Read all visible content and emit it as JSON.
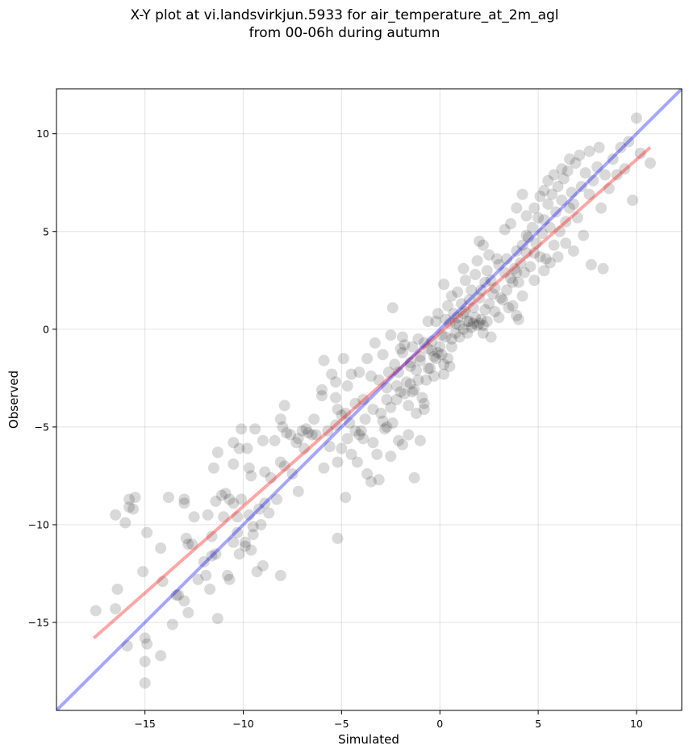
{
  "title_lines": [
    "X-Y plot at vi.landsvirkjun.5933 for air_temperature_at_2m_agl",
    "from 00-06h during autumn"
  ],
  "chart_data": {
    "type": "scatter",
    "title": "X-Y plot at vi.landsvirkjun.5933 for air_temperature_at_2m_agl\nfrom 00-06h during autumn",
    "xlabel": "Simulated",
    "ylabel": "Observed",
    "xlim": [
      -19.5,
      12.3
    ],
    "ylim": [
      -19.5,
      12.3
    ],
    "xticks": [
      -15,
      -10,
      -5,
      0,
      5,
      10
    ],
    "xtick_labels": [
      "−15",
      "−10",
      "−5",
      "0",
      "5",
      "10"
    ],
    "yticks": [
      -15,
      -10,
      -5,
      0,
      5,
      10
    ],
    "ytick_labels": [
      "−15",
      "−10",
      "−5",
      "0",
      "5",
      "10"
    ],
    "grid": true,
    "point_color": "#000000",
    "point_alpha": 0.15,
    "points": [
      [
        -17.5,
        -14.4
      ],
      [
        -16.5,
        -14.3
      ],
      [
        -16.4,
        -13.3
      ],
      [
        -15.9,
        -16.2
      ],
      [
        -15.0,
        -18.1
      ],
      [
        -15.0,
        -15.8
      ],
      [
        -15.0,
        -17.0
      ],
      [
        -14.9,
        -16.1
      ],
      [
        -14.2,
        -16.7
      ],
      [
        -14.1,
        -12.9
      ],
      [
        -13.6,
        -15.1
      ],
      [
        -13.3,
        -13.6
      ],
      [
        -13.0,
        -13.9
      ],
      [
        -12.8,
        -14.5
      ],
      [
        -12.6,
        -11.0
      ],
      [
        -11.9,
        -12.6
      ],
      [
        -11.6,
        -11.6
      ],
      [
        -11.3,
        -14.8
      ],
      [
        -11.4,
        -11.5
      ],
      [
        -10.7,
        -12.8
      ],
      [
        -10.2,
        -11.5
      ],
      [
        -10.3,
        -10.4
      ],
      [
        -9.9,
        -10.9
      ],
      [
        -9.6,
        -11.3
      ],
      [
        -9.3,
        -12.4
      ],
      [
        -9.5,
        -10.5
      ],
      [
        -9.0,
        -12.1
      ],
      [
        -8.1,
        -12.6
      ],
      [
        -16.5,
        -9.5
      ],
      [
        -16.0,
        -9.9
      ],
      [
        -15.8,
        -8.7
      ],
      [
        -15.8,
        -9.1
      ],
      [
        -15.6,
        -9.2
      ],
      [
        -15.5,
        -8.6
      ],
      [
        -15.1,
        -12.4
      ],
      [
        -14.9,
        -10.4
      ],
      [
        -14.2,
        -11.2
      ],
      [
        -13.8,
        -8.6
      ],
      [
        -13.4,
        -13.6
      ],
      [
        -13.0,
        -8.7
      ],
      [
        -13.0,
        -8.9
      ],
      [
        -12.9,
        -10.7
      ],
      [
        -12.8,
        -11.0
      ],
      [
        -12.5,
        -9.6
      ],
      [
        -11.8,
        -9.5
      ],
      [
        -11.6,
        -10.6
      ],
      [
        -11.4,
        -8.8
      ],
      [
        -11.1,
        -8.5
      ],
      [
        -11.0,
        -9.6
      ],
      [
        -10.9,
        -8.4
      ],
      [
        -10.7,
        -8.7
      ],
      [
        -10.5,
        -8.9
      ],
      [
        -10.5,
        -10.9
      ],
      [
        -10.3,
        -9.6
      ],
      [
        -10.1,
        -8.7
      ],
      [
        -9.7,
        -9.5
      ],
      [
        -9.5,
        -10.1
      ],
      [
        -9.2,
        -9.2
      ],
      [
        -8.9,
        -8.9
      ],
      [
        -8.6,
        -7.6
      ],
      [
        -11.5,
        -7.1
      ],
      [
        -11.3,
        -6.3
      ],
      [
        -10.5,
        -6.9
      ],
      [
        -10.5,
        -5.8
      ],
      [
        -10.2,
        -6.1
      ],
      [
        -10.1,
        -5.1
      ],
      [
        -9.8,
        -6.1
      ],
      [
        -9.7,
        -7.1
      ],
      [
        -9.6,
        -7.5
      ],
      [
        -9.4,
        -5.1
      ],
      [
        -9.0,
        -5.7
      ],
      [
        -8.9,
        -7.3
      ],
      [
        -8.4,
        -5.7
      ],
      [
        -8.1,
        -4.6
      ],
      [
        -8.0,
        -5.0
      ],
      [
        -7.9,
        -3.9
      ],
      [
        -8.1,
        -6.8
      ],
      [
        -7.6,
        -5.4
      ],
      [
        -7.2,
        -5.6
      ],
      [
        -7.0,
        -5.2
      ],
      [
        -6.8,
        -5.1
      ],
      [
        -6.5,
        -5.4
      ],
      [
        -6.3,
        -5.4
      ],
      [
        -5.9,
        -7.1
      ],
      [
        -5.7,
        -5.2
      ],
      [
        -5.3,
        -4.9
      ],
      [
        -5.2,
        -4.1
      ],
      [
        -5.0,
        -4.4
      ],
      [
        -4.8,
        -4.3
      ],
      [
        -4.6,
        -4.8
      ],
      [
        -4.2,
        -6.8
      ],
      [
        -4.1,
        -5.4
      ],
      [
        -4.0,
        -5.2
      ],
      [
        -3.7,
        -7.4
      ],
      [
        -3.5,
        -7.8
      ],
      [
        -3.2,
        -6.4
      ],
      [
        -3.1,
        -7.7
      ],
      [
        -2.7,
        -5.0
      ],
      [
        -2.5,
        -6.5
      ],
      [
        -2.4,
        -4.8
      ],
      [
        -2.1,
        -5.7
      ],
      [
        -1.9,
        -5.9
      ],
      [
        -1.6,
        -5.4
      ],
      [
        -1.3,
        -7.6
      ],
      [
        -1.0,
        -5.7
      ],
      [
        -7.2,
        -8.3
      ],
      [
        -5.2,
        -10.7
      ],
      [
        -4.8,
        -8.6
      ],
      [
        -5.2,
        -6.8
      ],
      [
        -6.4,
        -4.6
      ],
      [
        -6.0,
        -3.1
      ],
      [
        -6.0,
        -3.4
      ],
      [
        -5.9,
        -1.6
      ],
      [
        -5.5,
        -2.3
      ],
      [
        -5.3,
        -2.7
      ],
      [
        -5.3,
        -3.5
      ],
      [
        -4.9,
        -1.5
      ],
      [
        -4.7,
        -2.9
      ],
      [
        -4.5,
        -2.3
      ],
      [
        -4.3,
        -3.8
      ],
      [
        -4.1,
        -2.2
      ],
      [
        -3.9,
        -3.6
      ],
      [
        -3.7,
        -1.5
      ],
      [
        -3.5,
        -2.4
      ],
      [
        -3.3,
        -0.7
      ],
      [
        -3.1,
        -2.6
      ],
      [
        -2.9,
        -1.3
      ],
      [
        -2.7,
        -3.0
      ],
      [
        -2.6,
        -2.2
      ],
      [
        -2.5,
        -0.3
      ],
      [
        -2.4,
        1.1
      ],
      [
        -2.3,
        -1.8
      ],
      [
        -2.2,
        -3.6
      ],
      [
        -2.1,
        -2.2
      ],
      [
        -2.0,
        -1.0
      ],
      [
        -1.9,
        -0.4
      ],
      [
        -1.8,
        -0.8
      ],
      [
        -1.7,
        -2.7
      ],
      [
        -1.6,
        -3.9
      ],
      [
        -1.5,
        -1.7
      ],
      [
        -1.4,
        -0.9
      ],
      [
        -1.3,
        -3.1
      ],
      [
        -1.2,
        -2.1
      ],
      [
        -1.1,
        -0.5
      ],
      [
        -1.0,
        -1.4
      ],
      [
        -0.9,
        -3.5
      ],
      [
        -0.8,
        -3.8
      ],
      [
        -0.7,
        -2.6
      ],
      [
        -0.6,
        -1.0
      ],
      [
        -0.5,
        -2.0
      ],
      [
        -0.4,
        -0.6
      ],
      [
        -0.3,
        -1.4
      ],
      [
        -0.2,
        0.4
      ],
      [
        -0.1,
        -1.2
      ],
      [
        0.0,
        -0.9
      ],
      [
        0.1,
        -1.3
      ],
      [
        0.2,
        -1.8
      ],
      [
        0.3,
        -0.4
      ],
      [
        0.4,
        -1.5
      ],
      [
        0.5,
        0.3
      ],
      [
        0.6,
        -0.5
      ],
      [
        0.7,
        0.8
      ],
      [
        0.8,
        -0.2
      ],
      [
        0.9,
        0.6
      ],
      [
        1.0,
        0.2
      ],
      [
        1.1,
        1.3
      ],
      [
        1.2,
        0.0
      ],
      [
        1.3,
        0.9
      ],
      [
        1.4,
        0.4
      ],
      [
        1.5,
        0.4
      ],
      [
        1.6,
        0.1
      ],
      [
        1.7,
        0.3
      ],
      [
        1.8,
        0.6
      ],
      [
        1.9,
        0.2
      ],
      [
        2.0,
        0.3
      ],
      [
        2.1,
        0.5
      ],
      [
        2.2,
        0.2
      ],
      [
        2.3,
        1.0
      ],
      [
        2.4,
        0.4
      ],
      [
        2.5,
        1.3
      ],
      [
        -1.9,
        -1.2
      ],
      [
        -1.5,
        -1.9
      ],
      [
        -1.0,
        -1.6
      ],
      [
        -0.8,
        -0.7
      ],
      [
        -0.4,
        -1.1
      ],
      [
        -0.2,
        -1.5
      ],
      [
        0.1,
        -0.3
      ],
      [
        0.3,
        0.5
      ],
      [
        0.6,
        -0.9
      ],
      [
        0.8,
        0.3
      ],
      [
        1.0,
        -0.4
      ],
      [
        1.2,
        0.8
      ],
      [
        1.4,
        -0.2
      ],
      [
        1.7,
        1.1
      ],
      [
        2.0,
        1.6
      ],
      [
        2.2,
        -0.2
      ],
      [
        -0.6,
        0.4
      ],
      [
        -0.1,
        0.8
      ],
      [
        0.4,
        1.2
      ],
      [
        0.2,
        2.3
      ],
      [
        0.6,
        1.7
      ],
      [
        0.9,
        1.9
      ],
      [
        1.3,
        2.5
      ],
      [
        1.5,
        1.5
      ],
      [
        1.8,
        2.8
      ],
      [
        2.1,
        2.0
      ],
      [
        2.4,
        3.0
      ],
      [
        2.6,
        2.5
      ],
      [
        2.8,
        2.1
      ],
      [
        3.0,
        3.3
      ],
      [
        3.1,
        1.6
      ],
      [
        3.3,
        2.9
      ],
      [
        3.4,
        3.6
      ],
      [
        3.6,
        2.6
      ],
      [
        3.7,
        1.2
      ],
      [
        3.8,
        3.1
      ],
      [
        3.9,
        4.0
      ],
      [
        4.0,
        2.4
      ],
      [
        4.1,
        3.4
      ],
      [
        4.2,
        4.3
      ],
      [
        4.3,
        2.9
      ],
      [
        4.4,
        3.9
      ],
      [
        4.5,
        4.7
      ],
      [
        4.6,
        3.2
      ],
      [
        4.7,
        5.2
      ],
      [
        4.8,
        2.5
      ],
      [
        4.9,
        4.4
      ],
      [
        5.0,
        5.7
      ],
      [
        5.1,
        3.7
      ],
      [
        5.2,
        4.9
      ],
      [
        5.3,
        5.6
      ],
      [
        5.4,
        3.6
      ],
      [
        5.5,
        6.4
      ],
      [
        5.6,
        5.2
      ],
      [
        5.7,
        6.9
      ],
      [
        5.8,
        4.3
      ],
      [
        5.9,
        6.0
      ],
      [
        6.0,
        7.3
      ],
      [
        6.1,
        5.0
      ],
      [
        6.2,
        6.6
      ],
      [
        6.3,
        7.7
      ],
      [
        6.4,
        5.5
      ],
      [
        6.5,
        8.1
      ],
      [
        6.6,
        6.2
      ],
      [
        6.7,
        7.0
      ],
      [
        6.8,
        6.4
      ],
      [
        6.9,
        8.5
      ],
      [
        7.0,
        5.7
      ],
      [
        7.2,
        7.3
      ],
      [
        7.4,
        8.0
      ],
      [
        7.6,
        6.9
      ],
      [
        7.8,
        7.6
      ],
      [
        8.0,
        8.3
      ],
      [
        8.2,
        6.2
      ],
      [
        8.4,
        7.9
      ],
      [
        8.6,
        7.2
      ],
      [
        8.8,
        8.7
      ],
      [
        9.0,
        7.9
      ],
      [
        9.2,
        9.3
      ],
      [
        9.4,
        8.2
      ],
      [
        9.6,
        9.6
      ],
      [
        9.8,
        6.6
      ],
      [
        10.0,
        10.8
      ],
      [
        10.2,
        9.0
      ],
      [
        10.7,
        8.5
      ],
      [
        8.3,
        3.1
      ],
      [
        7.7,
        3.3
      ],
      [
        7.3,
        4.8
      ],
      [
        6.8,
        4.0
      ],
      [
        6.4,
        4.4
      ],
      [
        6.0,
        3.7
      ],
      [
        5.6,
        3.4
      ],
      [
        5.3,
        3.0
      ],
      [
        4.8,
        3.9
      ],
      [
        4.4,
        4.8
      ],
      [
        3.9,
        2.9
      ],
      [
        3.7,
        2.4
      ],
      [
        3.4,
        2.0
      ],
      [
        3.2,
        1.5
      ],
      [
        2.8,
        0.9
      ],
      [
        2.6,
        -0.4
      ],
      [
        2.9,
        3.6
      ],
      [
        2.5,
        3.8
      ],
      [
        2.2,
        4.3
      ],
      [
        2.0,
        4.5
      ],
      [
        3.3,
        5.1
      ],
      [
        3.6,
        5.4
      ],
      [
        3.9,
        6.2
      ],
      [
        4.2,
        6.9
      ],
      [
        4.4,
        5.8
      ],
      [
        4.8,
        6.2
      ],
      [
        5.1,
        6.8
      ],
      [
        5.3,
        7.1
      ],
      [
        5.5,
        7.6
      ],
      [
        5.8,
        7.9
      ],
      [
        6.2,
        8.2
      ],
      [
        6.6,
        8.7
      ],
      [
        7.1,
        8.9
      ],
      [
        7.6,
        9.1
      ],
      [
        8.1,
        9.3
      ],
      [
        1.2,
        3.1
      ],
      [
        1.6,
        2.0
      ],
      [
        1.9,
        3.5
      ],
      [
        2.3,
        2.4
      ],
      [
        2.7,
        1.8
      ],
      [
        3.0,
        0.6
      ],
      [
        3.5,
        1.1
      ],
      [
        3.9,
        0.7
      ],
      [
        4.2,
        1.7
      ],
      [
        4.0,
        0.5
      ],
      [
        0.5,
        -1.9
      ],
      [
        0.2,
        -2.3
      ],
      [
        -0.3,
        -2.4
      ],
      [
        -0.6,
        -2.0
      ],
      [
        -1.1,
        -2.6
      ],
      [
        -1.4,
        -3.2
      ],
      [
        -1.8,
        -3.3
      ],
      [
        -2.2,
        -2.9
      ],
      [
        -2.7,
        -3.6
      ],
      [
        -3.0,
        -4.3
      ],
      [
        -3.4,
        -4.1
      ],
      [
        -3.8,
        -4.6
      ],
      [
        -4.3,
        -5.2
      ],
      [
        -4.7,
        -5.6
      ],
      [
        -2.9,
        -4.7
      ],
      [
        -2.5,
        -4.0
      ],
      [
        -2.0,
        -3.2
      ],
      [
        -1.5,
        -2.8
      ],
      [
        -1.2,
        -4.3
      ],
      [
        -0.8,
        -4.1
      ],
      [
        -7.8,
        -5.3
      ],
      [
        -7.3,
        -5.8
      ],
      [
        -6.9,
        -6.1
      ],
      [
        -6.7,
        -5.3
      ],
      [
        -5.6,
        -6.0
      ],
      [
        -5.0,
        -6.1
      ],
      [
        -4.5,
        -6.4
      ],
      [
        -3.9,
        -5.6
      ],
      [
        -3.4,
        -5.8
      ],
      [
        -2.8,
        -5.1
      ],
      [
        -12.0,
        -11.9
      ],
      [
        -12.3,
        -12.8
      ],
      [
        -11.7,
        -13.3
      ],
      [
        -10.8,
        -12.6
      ],
      [
        -9.9,
        -11.1
      ],
      [
        -9.1,
        -10.0
      ],
      [
        -8.7,
        -9.4
      ],
      [
        -8.3,
        -8.7
      ],
      [
        -7.9,
        -7.0
      ],
      [
        -7.5,
        -7.4
      ]
    ],
    "series": [
      {
        "type": "line",
        "color": "#ff0000",
        "alpha": 0.35,
        "x": [
          -17.6,
          10.7
        ],
        "y": [
          -15.8,
          9.3
        ]
      },
      {
        "type": "line",
        "color": "#0000ff",
        "alpha": 0.35,
        "x": [
          -19.5,
          12.3
        ],
        "y": [
          -19.5,
          12.3
        ]
      }
    ]
  }
}
